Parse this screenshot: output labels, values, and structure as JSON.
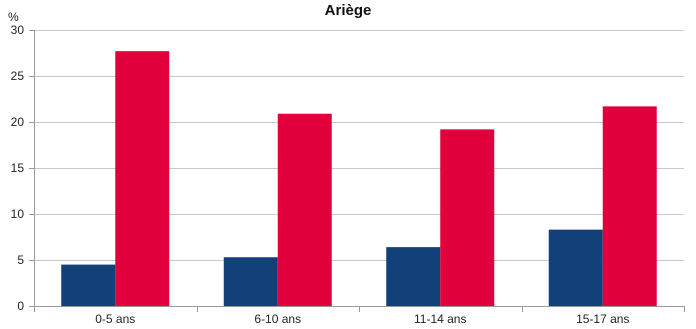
{
  "chart_data": {
    "type": "bar",
    "title": "Ariège",
    "ylabel": "%",
    "xlabel": "",
    "categories": [
      "0-5 ans",
      "6-10 ans",
      "11-14 ans",
      "15-17 ans"
    ],
    "yticks": [
      "0",
      "5",
      "10",
      "15",
      "20",
      "25",
      "30"
    ],
    "ylim": [
      0,
      30
    ],
    "grid": true,
    "legend": "none",
    "series": [
      {
        "values": [
          4.5,
          5.3,
          6.4,
          8.3
        ],
        "color": "#12417A"
      },
      {
        "values": [
          27.7,
          20.9,
          19.2,
          21.7
        ],
        "color": "#E2003C"
      }
    ]
  }
}
